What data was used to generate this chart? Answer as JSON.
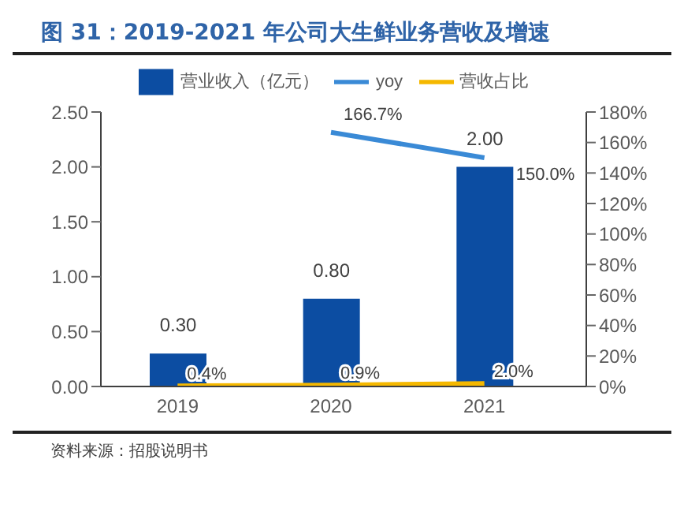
{
  "chart_data": {
    "type": "bar",
    "title": "图 31：2019-2021 年公司大生鲜业务营收及增速",
    "categories": [
      "2019",
      "2020",
      "2021"
    ],
    "series": [
      {
        "name": "营业收入（亿元）",
        "color": "#0c4da2",
        "values": [
          0.3,
          0.8,
          2.0
        ],
        "value_labels": [
          "0.30",
          "0.80",
          "2.00"
        ]
      },
      {
        "name": "yoy",
        "type": "line",
        "axis": "y2",
        "color": "#3a8ad6",
        "values": [
          null,
          166.7,
          150.0
        ],
        "value_labels": [
          null,
          "166.7%",
          "150.0%"
        ]
      },
      {
        "name": "营收占比",
        "type": "line",
        "axis": "y2",
        "color": "#f5b800",
        "values": [
          0.4,
          0.9,
          2.0
        ],
        "value_labels": [
          "0.4%",
          "0.9%",
          "2.0%"
        ]
      }
    ],
    "ylim": [
      0,
      2.5
    ],
    "yticks": [
      {
        "value": 0,
        "label": "0.00"
      },
      {
        "value": 0.5,
        "label": "0.50"
      },
      {
        "value": 1,
        "label": "1.00"
      },
      {
        "value": 1.5,
        "label": "1.50"
      },
      {
        "value": 2,
        "label": "2.00"
      },
      {
        "value": 2.5,
        "label": "2.50"
      }
    ],
    "y2lim": [
      0,
      180
    ],
    "y2ticks": [
      {
        "value": 0,
        "label": "0%"
      },
      {
        "value": 20,
        "label": "20%"
      },
      {
        "value": 40,
        "label": "40%"
      },
      {
        "value": 60,
        "label": "60%"
      },
      {
        "value": 80,
        "label": "80%"
      },
      {
        "value": 100,
        "label": "100%"
      },
      {
        "value": 120,
        "label": "120%"
      },
      {
        "value": 140,
        "label": "140%"
      },
      {
        "value": 160,
        "label": "160%"
      },
      {
        "value": 180,
        "label": "180%"
      }
    ],
    "legend": "top",
    "grid": false,
    "marker": "none",
    "annotations": [
      "资料来源：招股说明书"
    ]
  }
}
